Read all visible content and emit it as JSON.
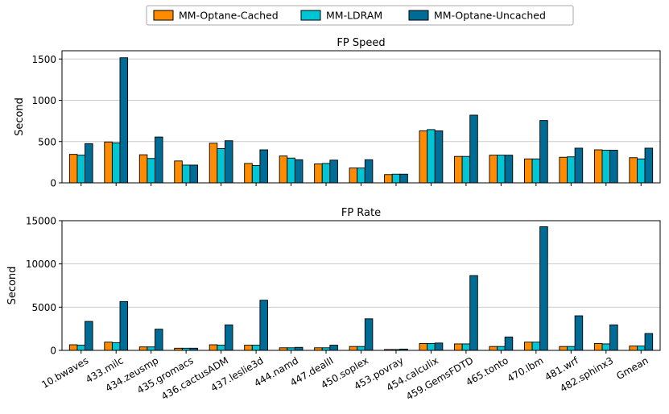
{
  "chart_data": {
    "type": "bar",
    "legend": {
      "placement": "top-center",
      "entries": [
        "MM-Optane-Cached",
        "MM-LDRAM",
        "MM-Optane-Uncached"
      ]
    },
    "colors": {
      "MM-Optane-Cached": "#ff8c00",
      "MM-LDRAM": "#00c5d5",
      "MM-Optane-Uncached": "#006b94",
      "grid": "#cccccc",
      "edge": "#000000"
    },
    "categories": [
      "10.bwaves",
      "433.milc",
      "434.zeusmp",
      "435.gromacs",
      "436.cactusADM",
      "437.leslie3d",
      "444.namd",
      "447.dealII",
      "450.soplex",
      "453.povray",
      "454.calculix",
      "459.GemsFDTD",
      "465.tonto",
      "470.lbm",
      "481.wrf",
      "482.sphinx3",
      "Gmean"
    ],
    "subplots": [
      {
        "title": "FP Speed",
        "ylabel": "Second",
        "ylim": [
          0,
          1600
        ],
        "yticks": [
          0,
          500,
          1000,
          1500
        ],
        "grid": true,
        "show_xticklabels": false,
        "series": [
          {
            "name": "MM-Optane-Cached",
            "values": [
              345,
              495,
              340,
              265,
              480,
              235,
              325,
              230,
              180,
              100,
              630,
              320,
              335,
              290,
              310,
              400,
              305
            ]
          },
          {
            "name": "MM-LDRAM",
            "values": [
              335,
              485,
              295,
              215,
              415,
              210,
              300,
              235,
              180,
              105,
              645,
              320,
              335,
              290,
              315,
              395,
              290
            ]
          },
          {
            "name": "MM-Optane-Uncached",
            "values": [
              475,
              1515,
              555,
              215,
              510,
              400,
              280,
              275,
              280,
              105,
              630,
              820,
              335,
              755,
              420,
              395,
              420
            ]
          }
        ]
      },
      {
        "title": "FP Rate",
        "ylabel": "Second",
        "ylim": [
          0,
          15000
        ],
        "yticks": [
          0,
          5000,
          10000,
          15000
        ],
        "grid": true,
        "show_xticklabels": true,
        "series": [
          {
            "name": "MM-Optane-Cached",
            "values": [
              650,
              950,
              400,
              250,
              650,
              600,
              300,
              300,
              450,
              100,
              800,
              750,
              450,
              950,
              450,
              800,
              500
            ]
          },
          {
            "name": "MM-LDRAM",
            "values": [
              600,
              900,
              400,
              250,
              600,
              600,
              300,
              300,
              450,
              100,
              800,
              750,
              450,
              950,
              450,
              750,
              500
            ]
          },
          {
            "name": "MM-Optane-Uncached",
            "values": [
              3350,
              5650,
              2450,
              250,
              2950,
              5800,
              350,
              600,
              3650,
              150,
              850,
              8650,
              1550,
              14300,
              4000,
              2950,
              1950
            ]
          }
        ]
      }
    ]
  }
}
